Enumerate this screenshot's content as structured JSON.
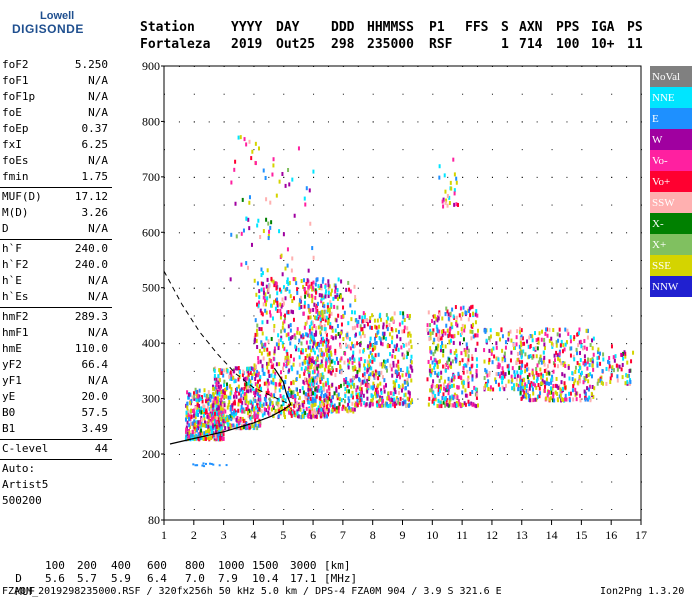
{
  "logo": {
    "line1": "Lowell",
    "line2": "DIGISONDE"
  },
  "header": {
    "labels": [
      "Station",
      "YYYY",
      "DAY",
      "DDD",
      "HHMMSS",
      "P1",
      "FFS",
      "S",
      "AXN",
      "PPS",
      "IGA",
      "PS"
    ],
    "values": [
      "Fortaleza",
      "2019",
      "Out25",
      "298",
      "235000",
      "RSF",
      "",
      "1",
      "714",
      "100",
      "10+",
      "11"
    ]
  },
  "sidebar": {
    "group1": [
      {
        "k": "foF2",
        "v": "5.250"
      },
      {
        "k": "foF1",
        "v": "N/A"
      },
      {
        "k": "foF1p",
        "v": "N/A"
      },
      {
        "k": "foE",
        "v": "N/A"
      },
      {
        "k": "foEp",
        "v": "0.37"
      },
      {
        "k": "fxI",
        "v": "6.25"
      },
      {
        "k": "foEs",
        "v": "N/A"
      },
      {
        "k": "fmin",
        "v": "1.75"
      }
    ],
    "group2": [
      {
        "k": "MUF(D)",
        "v": "17.12"
      },
      {
        "k": "M(D)",
        "v": "3.26"
      },
      {
        "k": "D",
        "v": "N/A"
      }
    ],
    "group3": [
      {
        "k": "h`F",
        "v": "240.0"
      },
      {
        "k": "h`F2",
        "v": "240.0"
      },
      {
        "k": "h`E",
        "v": "N/A"
      },
      {
        "k": "h`Es",
        "v": "N/A"
      }
    ],
    "group4": [
      {
        "k": "hmF2",
        "v": "289.3"
      },
      {
        "k": "hmF1",
        "v": "N/A"
      },
      {
        "k": "hmE",
        "v": "110.0"
      },
      {
        "k": "yF2",
        "v": "66.4"
      },
      {
        "k": "yF1",
        "v": "N/A"
      },
      {
        "k": "yE",
        "v": "20.0"
      },
      {
        "k": "B0",
        "v": "57.5"
      },
      {
        "k": "B1",
        "v": "3.49"
      }
    ],
    "group5": [
      {
        "k": "C-level",
        "v": "44"
      }
    ],
    "notes": [
      "Auto:",
      "Artist5",
      "500200"
    ]
  },
  "chart_data": {
    "type": "scatter",
    "xlim": [
      1,
      17
    ],
    "ylim": [
      80,
      900
    ],
    "x_ticks": [
      1,
      2,
      3,
      4,
      5,
      6,
      7,
      8,
      9,
      10,
      11,
      12,
      13,
      14,
      15,
      16,
      17
    ],
    "y_ticks": [
      80,
      200,
      300,
      400,
      500,
      600,
      700,
      800,
      900
    ],
    "grid": true,
    "legend": [
      {
        "label": "NoVal",
        "color": "#808080"
      },
      {
        "label": "NNE",
        "color": "#00e5ff"
      },
      {
        "label": "E",
        "color": "#1e90ff"
      },
      {
        "label": "W",
        "color": "#a000a0"
      },
      {
        "label": "Vo-",
        "color": "#ff20a0"
      },
      {
        "label": "Vo+",
        "color": "#ff0030"
      },
      {
        "label": "SSW",
        "color": "#ffb0b0"
      },
      {
        "label": "X-",
        "color": "#008000"
      },
      {
        "label": "X+",
        "color": "#80c060"
      },
      {
        "label": "SSE",
        "color": "#d4d400"
      },
      {
        "label": "NNW",
        "color": "#2020d0"
      }
    ],
    "echo_clusters": [
      {
        "x": [
          1.7,
          3.0
        ],
        "y": [
          230,
          320
        ],
        "n": 420
      },
      {
        "x": [
          2.6,
          4.2
        ],
        "y": [
          250,
          360
        ],
        "n": 380
      },
      {
        "x": [
          4.0,
          6.6
        ],
        "y": [
          270,
          520
        ],
        "n": 700
      },
      {
        "x": [
          5.8,
          7.4
        ],
        "y": [
          280,
          520
        ],
        "n": 380
      },
      {
        "x": [
          7.4,
          9.3
        ],
        "y": [
          290,
          460
        ],
        "n": 420
      },
      {
        "x": [
          9.8,
          11.5
        ],
        "y": [
          290,
          470
        ],
        "n": 360
      },
      {
        "x": [
          11.7,
          13.0
        ],
        "y": [
          320,
          430
        ],
        "n": 140
      },
      {
        "x": [
          12.9,
          15.4
        ],
        "y": [
          300,
          430
        ],
        "n": 380
      },
      {
        "x": [
          15.4,
          16.7
        ],
        "y": [
          330,
          400
        ],
        "n": 70
      },
      {
        "x": [
          3.2,
          6.0
        ],
        "y": [
          500,
          780
        ],
        "n": 90
      },
      {
        "x": [
          10.2,
          10.9
        ],
        "y": [
          650,
          740
        ],
        "n": 25
      }
    ],
    "profile_solid": [
      [
        1.2,
        218
      ],
      [
        2,
        228
      ],
      [
        3,
        240
      ],
      [
        4,
        256
      ],
      [
        4.6,
        268
      ],
      [
        5.0,
        280
      ],
      [
        5.25,
        289
      ],
      [
        5.1,
        310
      ],
      [
        5.0,
        330
      ],
      [
        4.7,
        355
      ]
    ],
    "profile_dashed": [
      [
        1,
        530
      ],
      [
        1.6,
        470
      ],
      [
        2.2,
        420
      ],
      [
        2.8,
        380
      ],
      [
        3.4,
        345
      ],
      [
        4,
        320
      ],
      [
        4.8,
        300
      ],
      [
        5.25,
        289
      ]
    ],
    "noise_x": [
      1.9,
      3.1
    ],
    "noise_y": 185
  },
  "footer": {
    "d_label": "D",
    "d_values": [
      "100",
      "200",
      "400",
      "600",
      "800",
      "1000",
      "1500",
      "3000",
      "[km]"
    ],
    "muf_label": "MUF",
    "muf_values": [
      "5.6",
      "5.7",
      "5.9",
      "6.4",
      "7.0",
      "7.9",
      "10.4",
      "17.1",
      "[MHz]"
    ],
    "info": "FZA0M_2019298235000.RSF / 320fx256h 50 kHz 5.0 km / DPS-4 FZA0M 904 / 3.9 S 321.6 E",
    "version": "Ion2Png 1.3.20"
  }
}
